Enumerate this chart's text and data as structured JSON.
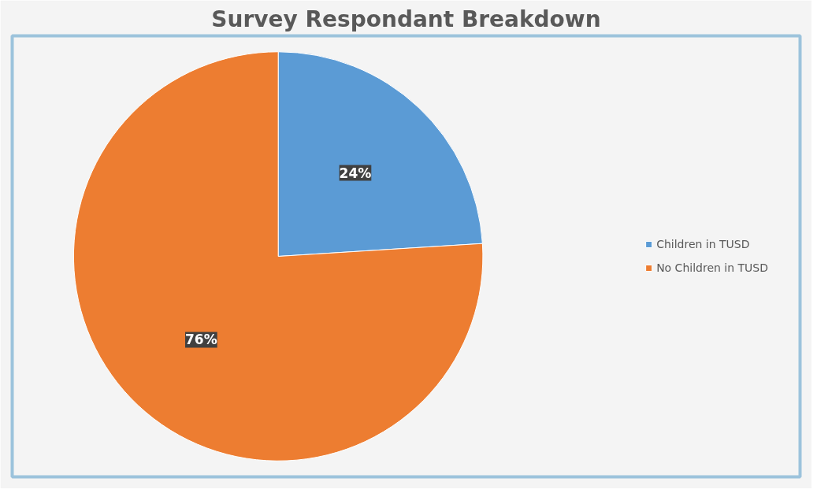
{
  "chart_data": {
    "type": "pie",
    "title": "Survey Respondant Breakdown",
    "categories": [
      "Children in TUSD",
      "No Children in TUSD"
    ],
    "values": [
      24,
      76
    ],
    "colors": [
      "#5b9bd5",
      "#ed7d31"
    ],
    "value_labels": [
      "24%",
      "76%"
    ],
    "legend": "right"
  }
}
